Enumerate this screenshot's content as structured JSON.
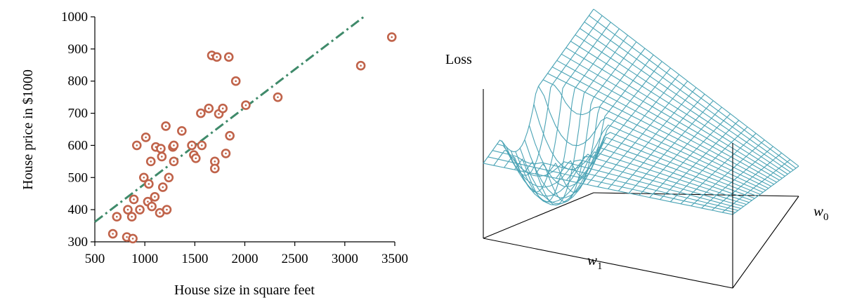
{
  "chart_data": [
    {
      "type": "scatter",
      "title": "",
      "xlabel": "House size in square feet",
      "ylabel": "House price in $1000",
      "xlim": [
        500,
        3500
      ],
      "ylim": [
        300,
        1000
      ],
      "xticks": [
        "500",
        "1000",
        "1500",
        "2000",
        "2500",
        "3000",
        "3500"
      ],
      "yticks": [
        "300",
        "400",
        "500",
        "600",
        "700",
        "800",
        "900",
        "1000"
      ],
      "grid": false,
      "colors": {
        "points": "#c0634a",
        "fit_line": "#3f8a6a"
      },
      "points": [
        {
          "x": 680,
          "y": 325
        },
        {
          "x": 720,
          "y": 378
        },
        {
          "x": 820,
          "y": 315
        },
        {
          "x": 830,
          "y": 400
        },
        {
          "x": 870,
          "y": 378
        },
        {
          "x": 880,
          "y": 310
        },
        {
          "x": 890,
          "y": 432
        },
        {
          "x": 920,
          "y": 600
        },
        {
          "x": 950,
          "y": 400
        },
        {
          "x": 990,
          "y": 500
        },
        {
          "x": 1010,
          "y": 625
        },
        {
          "x": 1030,
          "y": 425
        },
        {
          "x": 1040,
          "y": 480
        },
        {
          "x": 1060,
          "y": 550
        },
        {
          "x": 1070,
          "y": 410
        },
        {
          "x": 1100,
          "y": 440
        },
        {
          "x": 1110,
          "y": 595
        },
        {
          "x": 1150,
          "y": 390
        },
        {
          "x": 1160,
          "y": 590
        },
        {
          "x": 1170,
          "y": 565
        },
        {
          "x": 1180,
          "y": 470
        },
        {
          "x": 1210,
          "y": 660
        },
        {
          "x": 1220,
          "y": 400
        },
        {
          "x": 1240,
          "y": 500
        },
        {
          "x": 1280,
          "y": 595
        },
        {
          "x": 1290,
          "y": 600
        },
        {
          "x": 1290,
          "y": 550
        },
        {
          "x": 1370,
          "y": 645
        },
        {
          "x": 1470,
          "y": 600
        },
        {
          "x": 1490,
          "y": 570
        },
        {
          "x": 1510,
          "y": 560
        },
        {
          "x": 1560,
          "y": 700
        },
        {
          "x": 1570,
          "y": 600
        },
        {
          "x": 1640,
          "y": 715
        },
        {
          "x": 1670,
          "y": 880
        },
        {
          "x": 1700,
          "y": 550
        },
        {
          "x": 1700,
          "y": 528
        },
        {
          "x": 1720,
          "y": 875
        },
        {
          "x": 1740,
          "y": 698
        },
        {
          "x": 1780,
          "y": 715
        },
        {
          "x": 1810,
          "y": 575
        },
        {
          "x": 1840,
          "y": 875
        },
        {
          "x": 1850,
          "y": 630
        },
        {
          "x": 1910,
          "y": 800
        },
        {
          "x": 2010,
          "y": 725
        },
        {
          "x": 2330,
          "y": 750
        },
        {
          "x": 3160,
          "y": 848
        },
        {
          "x": 3470,
          "y": 937
        }
      ],
      "fit_line": {
        "style": "dashed",
        "from": {
          "x": 500,
          "y": 362
        },
        "to": {
          "x": 3190,
          "y": 1000
        }
      }
    },
    {
      "type": "surface",
      "title": "",
      "zlabel": "Loss",
      "xlabel_var": "w",
      "xlabel_sub": "1",
      "ylabel_var": "w",
      "ylabel_sub": "0",
      "surface": "convex bowl (quadratic loss over w0, w1)",
      "colors": {
        "mesh": "#4aa3b5",
        "box": "#000000"
      }
    }
  ]
}
